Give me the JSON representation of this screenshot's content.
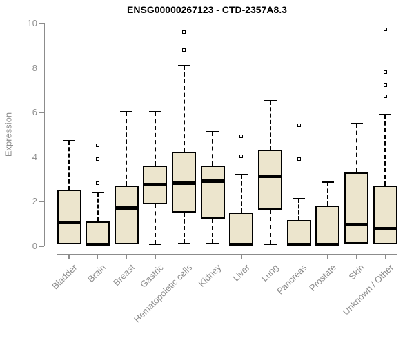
{
  "chart_data": {
    "type": "box",
    "title": "ENSG00000267123 - CTD-2357A8.3",
    "ylabel": "Expression",
    "xlabel": "",
    "ylim": [
      0,
      10
    ],
    "yticks": [
      0,
      2,
      4,
      6,
      8,
      10
    ],
    "grid": false,
    "legend": "none",
    "categories": [
      "Bladder",
      "Brain",
      "Breast",
      "Gastric",
      "Hematopoietic cells",
      "Kidney",
      "Liver",
      "Lung",
      "Pancreas",
      "Prostate",
      "Skin",
      "Unknown / Other"
    ],
    "series": [
      {
        "name": "Bladder",
        "whisker_low": 0.05,
        "q1": 0.05,
        "median": 1.05,
        "q3": 2.5,
        "whisker_high": 4.7,
        "outliers": []
      },
      {
        "name": "Brain",
        "whisker_low": 0.0,
        "q1": 0.0,
        "median": 0.05,
        "q3": 1.1,
        "whisker_high": 2.4,
        "outliers": [
          2.8,
          3.9,
          4.5
        ]
      },
      {
        "name": "Breast",
        "whisker_low": 0.05,
        "q1": 0.05,
        "median": 1.7,
        "q3": 2.7,
        "whisker_high": 6.0,
        "outliers": []
      },
      {
        "name": "Gastric",
        "whisker_low": 0.05,
        "q1": 1.85,
        "median": 2.75,
        "q3": 3.6,
        "whisker_high": 6.0,
        "outliers": []
      },
      {
        "name": "Hematopoietic cells",
        "whisker_low": 0.1,
        "q1": 1.5,
        "median": 2.8,
        "q3": 4.2,
        "whisker_high": 8.1,
        "outliers": [
          8.8,
          9.6
        ]
      },
      {
        "name": "Kidney",
        "whisker_low": 0.1,
        "q1": 1.2,
        "median": 2.9,
        "q3": 3.6,
        "whisker_high": 5.1,
        "outliers": []
      },
      {
        "name": "Liver",
        "whisker_low": 0.0,
        "q1": 0.0,
        "median": 0.05,
        "q3": 1.5,
        "whisker_high": 3.2,
        "outliers": [
          4.0,
          4.9
        ]
      },
      {
        "name": "Lung",
        "whisker_low": 0.05,
        "q1": 1.6,
        "median": 3.1,
        "q3": 4.3,
        "whisker_high": 6.5,
        "outliers": []
      },
      {
        "name": "Pancreas",
        "whisker_low": 0.0,
        "q1": 0.0,
        "median": 0.05,
        "q3": 1.15,
        "whisker_high": 2.1,
        "outliers": [
          3.9,
          5.4
        ]
      },
      {
        "name": "Prostate",
        "whisker_low": 0.0,
        "q1": 0.0,
        "median": 0.05,
        "q3": 1.8,
        "whisker_high": 2.85,
        "outliers": []
      },
      {
        "name": "Skin",
        "whisker_low": 0.1,
        "q1": 0.1,
        "median": 0.95,
        "q3": 3.3,
        "whisker_high": 5.5,
        "outliers": []
      },
      {
        "name": "Unknown / Other",
        "whisker_low": 0.05,
        "q1": 0.05,
        "median": 0.75,
        "q3": 2.7,
        "whisker_high": 5.9,
        "outliers": [
          6.7,
          7.2,
          7.8,
          9.7
        ]
      }
    ],
    "colors": {
      "box_fill": "#ECE5CD",
      "box_border": "#000000",
      "median": "#000000",
      "whisker": "#000000",
      "axis": "#8C8C8C",
      "tick_label": "#8C8C8C",
      "title_color": "#000000",
      "background": "#FFFFFF"
    }
  }
}
